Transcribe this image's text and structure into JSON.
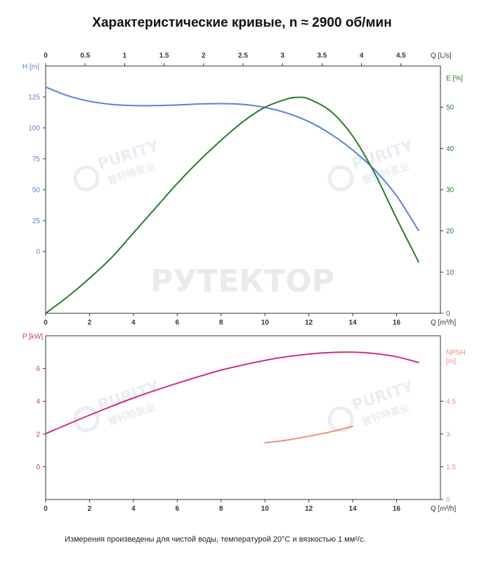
{
  "title": "Характеристические кривые, n ≈ 2900 об/мин",
  "footnote": "Измерения произведены для чистой воды, температурой 20°C и вязкостью 1 мм²/с.",
  "watermarks": {
    "main": "РУТЕКТОР",
    "logo": "PURITY",
    "logo_sub": "普轩特泵业"
  },
  "colors": {
    "head": "#5b7fe0",
    "efficiency": "#2a7a2a",
    "power": "#cc2f86",
    "npsh": "#f08e7a",
    "frame": "#333333",
    "tick": "#555555"
  },
  "chart_data": [
    {
      "type": "line",
      "x_axis": {
        "label": "Q [m³/h]",
        "range": [
          0,
          18
        ],
        "ticks": [
          "0",
          "2",
          "4",
          "6",
          "8",
          "10",
          "12",
          "14",
          "16"
        ]
      },
      "x2_axis": {
        "label": "Q [L/s]",
        "range": [
          0,
          5
        ],
        "ticks": [
          "0",
          "0.5",
          "1",
          "1.5",
          "2",
          "2.5",
          "3",
          "3.5",
          "4",
          "4.5"
        ]
      },
      "y_axis": {
        "label": "H [m]",
        "range": [
          -50,
          150
        ],
        "ticks": [
          "0",
          "25",
          "50",
          "75",
          "100",
          "125"
        ]
      },
      "y2_axis": {
        "label": "E [%]",
        "range": [
          0,
          60
        ],
        "ticks": [
          "0",
          "10",
          "20",
          "30",
          "40",
          "50"
        ]
      },
      "grid": false,
      "series": [
        {
          "name": "H [m]",
          "axis": "y",
          "x": [
            0,
            1,
            2,
            3,
            4,
            5,
            6,
            7,
            8,
            9,
            10,
            11,
            12,
            13,
            14,
            15,
            16,
            17
          ],
          "y": [
            133,
            126,
            121.5,
            119,
            118,
            118,
            118.5,
            119.3,
            119.6,
            119,
            116.5,
            112,
            105,
            95,
            82,
            66,
            45,
            17
          ]
        },
        {
          "name": "E [%]",
          "axis": "y2",
          "x": [
            0,
            1,
            2,
            3,
            4,
            5,
            6,
            7,
            8,
            9,
            10,
            11,
            11.5,
            12,
            13,
            14,
            15,
            16,
            17
          ],
          "y": [
            0,
            4,
            8.5,
            13.5,
            19.5,
            25.5,
            31.5,
            37,
            42,
            46.5,
            50,
            52,
            52.4,
            52,
            49,
            43,
            34,
            23,
            12.5
          ]
        }
      ]
    },
    {
      "type": "line",
      "x_axis": {
        "label": "Q [m³/h]",
        "range": [
          0,
          18
        ],
        "ticks": [
          "0",
          "2",
          "4",
          "6",
          "8",
          "10",
          "12",
          "14",
          "16"
        ]
      },
      "y_axis": {
        "label": "P [kW]",
        "range": [
          -2,
          8
        ],
        "ticks": [
          "0",
          "2",
          "4",
          "6"
        ]
      },
      "y2_axis": {
        "label": "NPSH [m]",
        "range": [
          0,
          7.5
        ],
        "ticks": [
          "0",
          "1.5",
          "3",
          "4.5"
        ]
      },
      "grid": false,
      "series": [
        {
          "name": "P [kW]",
          "axis": "y",
          "x": [
            0,
            2,
            4,
            6,
            8,
            10,
            11,
            12,
            13,
            14,
            15,
            16,
            17
          ],
          "y": [
            2.02,
            3.15,
            4.2,
            5.1,
            5.9,
            6.5,
            6.72,
            6.88,
            6.98,
            7.0,
            6.92,
            6.72,
            6.37
          ]
        },
        {
          "name": "NPSH [m]",
          "axis": "y2",
          "x": [
            10,
            11,
            12,
            13,
            14
          ],
          "y": [
            2.6,
            2.72,
            2.9,
            3.1,
            3.35
          ]
        }
      ]
    }
  ]
}
